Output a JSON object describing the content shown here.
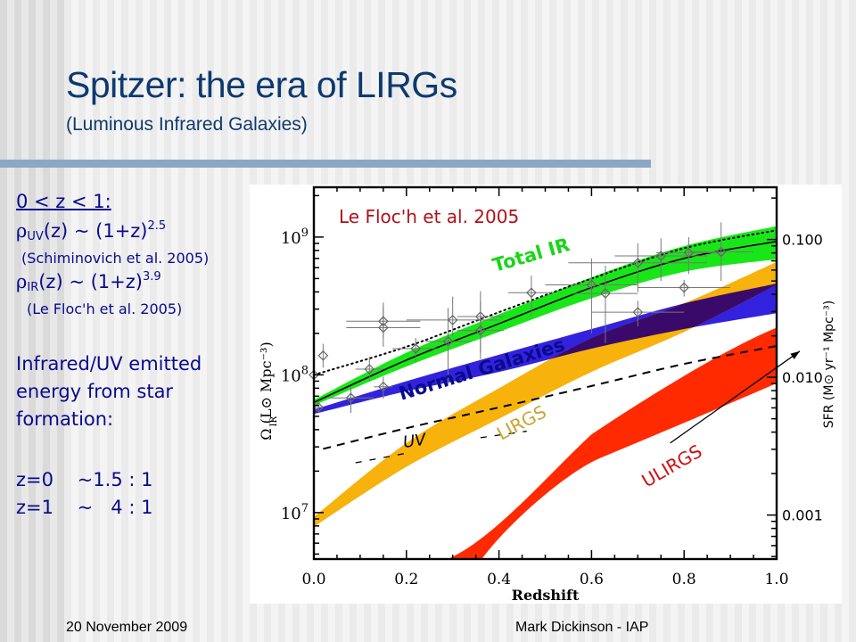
{
  "slide": {
    "title": "Spitzer:  the era of LIRGs",
    "subtitle": "(Luminous Infrared Galaxies)",
    "footer_left": "20 November 2009",
    "footer_right": "Mark Dickinson - IAP",
    "colors": {
      "title": "#0d3a6e",
      "body_text": "#0a0a8c",
      "rule": "#8aa7c4"
    }
  },
  "sidebar": {
    "range": "0 < z < 1:",
    "uv_symbol": "ρ",
    "uv_sub": "UV",
    "uv_expr": "(z) ~ (1+z)",
    "uv_exp": "2.5",
    "uv_ref": "(Schiminovich et al. 2005)",
    "ir_symbol": "ρ",
    "ir_sub": "IR",
    "ir_expr": "(z) ~ (1+z)",
    "ir_exp": "3.9",
    "ir_ref": "(Le Floc'h et al. 2005)",
    "ratio_heading_1": "Infrared/UV emitted",
    "ratio_heading_2": "energy from star",
    "ratio_heading_3": "formation:",
    "ratio_z0": "z=0    ~1.5 : 1",
    "ratio_z1": "z=1    ~   4 : 1"
  },
  "chart_data": {
    "type": "area",
    "title": "",
    "annotation_source": "Le Floc'h et al. 2005",
    "xlabel": "Redshift",
    "ylabel": "Ω_IR (L⊙ Mpc⁻³)",
    "ylabel_right": "SFR (M⊙ yr⁻¹ Mpc⁻³)",
    "xlim": [
      0.0,
      1.0
    ],
    "ylim": [
      4600000.0,
      2300000000.0
    ],
    "yscale": "log",
    "x_ticks": [
      "0.0",
      "0.2",
      "0.4",
      "0.6",
      "0.8",
      "1.0"
    ],
    "y_ticks": [
      {
        "value": 10000000.0,
        "label": "10",
        "exp": "7"
      },
      {
        "value": 100000000.0,
        "label": "10",
        "exp": "8"
      },
      {
        "value": 1000000000.0,
        "label": "10",
        "exp": "9"
      }
    ],
    "y_right_ticks": [
      {
        "value_left_units": 960000000.0,
        "label": "0.100"
      },
      {
        "value_left_units": 96000000.0,
        "label": "0.010"
      },
      {
        "value_left_units": 9600000.0,
        "label": "0.001"
      }
    ],
    "grid": false,
    "x": [
      0.0,
      0.2,
      0.4,
      0.6,
      0.8,
      1.0
    ],
    "bands": [
      {
        "name": "Total IR",
        "color": "#19e619",
        "lower": [
          60000000.0,
          115000000.0,
          205000000.0,
          360000000.0,
          560000000.0,
          690000000.0
        ],
        "upper": [
          66000000.0,
          145000000.0,
          275000000.0,
          510000000.0,
          860000000.0,
          1200000000.0
        ]
      },
      {
        "name": "Normal Galaxies",
        "color": "#3322dd",
        "lower": [
          52000000.0,
          76000000.0,
          105000000.0,
          155000000.0,
          215000000.0,
          280000000.0
        ],
        "upper": [
          56000000.0,
          90000000.0,
          140000000.0,
          215000000.0,
          330000000.0,
          460000000.0
        ]
      },
      {
        "name": "LIRGs",
        "color": "#f7b20c",
        "lower": [
          7900000.0,
          21500000.0,
          48000000.0,
          105000000.0,
          205000000.0,
          450000000.0
        ],
        "upper": [
          9300000.0,
          32000000.0,
          80000000.0,
          185000000.0,
          330000000.0,
          660000000.0
        ]
      },
      {
        "name": "ULIRGs",
        "color": "#ff2a00",
        "lower": [
          null,
          null,
          5200000.0,
          20000000.0,
          50000000.0,
          87000000.0
        ],
        "upper": [
          null,
          null,
          8200000.0,
          37000000.0,
          100000000.0,
          220000000.0
        ]
      }
    ],
    "overlap_color": "#3a0a6a",
    "series": [
      {
        "name": "Total IR fit",
        "style": "solid",
        "color": "#000000",
        "x": [
          0.0,
          0.2,
          0.4,
          0.6,
          0.8,
          1.0
        ],
        "values": [
          63000000.0,
          128000000.0,
          235000000.0,
          430000000.0,
          700000000.0,
          930000000.0
        ]
      },
      {
        "name": "Dotted fit",
        "style": "dotted",
        "color": "#000000",
        "x": [
          0.0,
          0.2,
          0.4,
          0.6,
          0.8,
          1.0
        ],
        "values": [
          100000000.0,
          160000000.0,
          285000000.0,
          500000000.0,
          830000000.0,
          1120000000.0
        ]
      },
      {
        "name": "UV",
        "style": "dashed",
        "color": "#000000",
        "x": [
          0.02,
          0.2,
          0.4,
          0.6,
          0.8,
          1.0
        ],
        "values": [
          29000000.0,
          41000000.0,
          58000000.0,
          83000000.0,
          120000000.0,
          162000000.0
        ]
      }
    ],
    "points": [
      {
        "x": 0.0,
        "y": 100000000.0,
        "xerr": 0.0,
        "yerr_lo": 2000000.0,
        "yerr_hi": 2000000.0
      },
      {
        "x": 0.01,
        "y": 58000000.0,
        "xerr": 0.01,
        "yerr_lo": 3000000.0,
        "yerr_hi": 3000000.0
      },
      {
        "x": 0.02,
        "y": 138000000.0,
        "xerr": 0.0,
        "yerr_lo": 25000000.0,
        "yerr_hi": 30000000.0
      },
      {
        "x": 0.08,
        "y": 68000000.0,
        "xerr": 0.05,
        "yerr_lo": 15000000.0,
        "yerr_hi": 15000000.0
      },
      {
        "x": 0.12,
        "y": 110000000.0,
        "xerr": 0.03,
        "yerr_lo": 20000000.0,
        "yerr_hi": 25000000.0
      },
      {
        "x": 0.15,
        "y": 220000000.0,
        "xerr": 0.08,
        "yerr_lo": 60000000.0,
        "yerr_hi": 90000000.0
      },
      {
        "x": 0.15,
        "y": 245000000.0,
        "xerr": 0.08,
        "yerr_lo": 60000000.0,
        "yerr_hi": 90000000.0
      },
      {
        "x": 0.22,
        "y": 155000000.0,
        "xerr": 0.05,
        "yerr_lo": 30000000.0,
        "yerr_hi": 30000000.0
      },
      {
        "x": 0.15,
        "y": 82000000.0,
        "xerr": 0.02,
        "yerr_lo": 15000000.0,
        "yerr_hi": 15000000.0
      },
      {
        "x": 0.29,
        "y": 175000000.0,
        "xerr": 0.05,
        "yerr_lo": 90000000.0,
        "yerr_hi": 130000000.0
      },
      {
        "x": 0.3,
        "y": 250000000.0,
        "xerr": 0.1,
        "yerr_lo": 60000000.0,
        "yerr_hi": 120000000.0
      },
      {
        "x": 0.36,
        "y": 265000000.0,
        "xerr": 0.05,
        "yerr_lo": 120000000.0,
        "yerr_hi": 140000000.0
      },
      {
        "x": 0.36,
        "y": 210000000.0,
        "xerr": 0.05,
        "yerr_lo": 80000000.0,
        "yerr_hi": 130000000.0
      },
      {
        "x": 0.47,
        "y": 395000000.0,
        "xerr": 0.05,
        "yerr_lo": 130000000.0,
        "yerr_hi": 130000000.0
      },
      {
        "x": 0.6,
        "y": 450000000.0,
        "xerr": 0.1,
        "yerr_lo": 250000000.0,
        "yerr_hi": 250000000.0
      },
      {
        "x": 0.63,
        "y": 390000000.0,
        "xerr": 0.07,
        "yerr_lo": 220000000.0,
        "yerr_hi": 230000000.0
      },
      {
        "x": 0.7,
        "y": 285000000.0,
        "xerr": 0.1,
        "yerr_lo": 60000000.0,
        "yerr_hi": 60000000.0
      },
      {
        "x": 0.7,
        "y": 650000000.0,
        "xerr": 0.15,
        "yerr_lo": 250000000.0,
        "yerr_hi": 250000000.0
      },
      {
        "x": 0.75,
        "y": 730000000.0,
        "xerr": 0.1,
        "yerr_lo": 250000000.0,
        "yerr_hi": 250000000.0
      },
      {
        "x": 0.8,
        "y": 430000000.0,
        "xerr": 0.1,
        "yerr_lo": 60000000.0,
        "yerr_hi": 60000000.0
      },
      {
        "x": 0.81,
        "y": 770000000.0,
        "xerr": 0.07,
        "yerr_lo": 230000000.0,
        "yerr_hi": 230000000.0
      },
      {
        "x": 0.88,
        "y": 780000000.0,
        "xerr": 0.07,
        "yerr_lo": 300000000.0,
        "yerr_hi": 500000000.0
      }
    ],
    "arrow": {
      "from": [
        0.77,
        32000000.0
      ],
      "to": [
        1.0,
        140000000.0
      ]
    },
    "labels": {
      "source": {
        "text": "Le Floc'h et al. 2005",
        "color": "#b0121b"
      },
      "total_ir": {
        "text": "Total IR",
        "color": "#19d619"
      },
      "normal": {
        "text": "Normal Galaxies",
        "color": "#0a0a8c"
      },
      "lirgs": {
        "text": "LIRGS",
        "color": "#c9a332"
      },
      "uv": {
        "text": "UV",
        "color": "#000000"
      },
      "ulirgs": {
        "text": "ULIRGS",
        "color": "#d40d10"
      }
    }
  }
}
